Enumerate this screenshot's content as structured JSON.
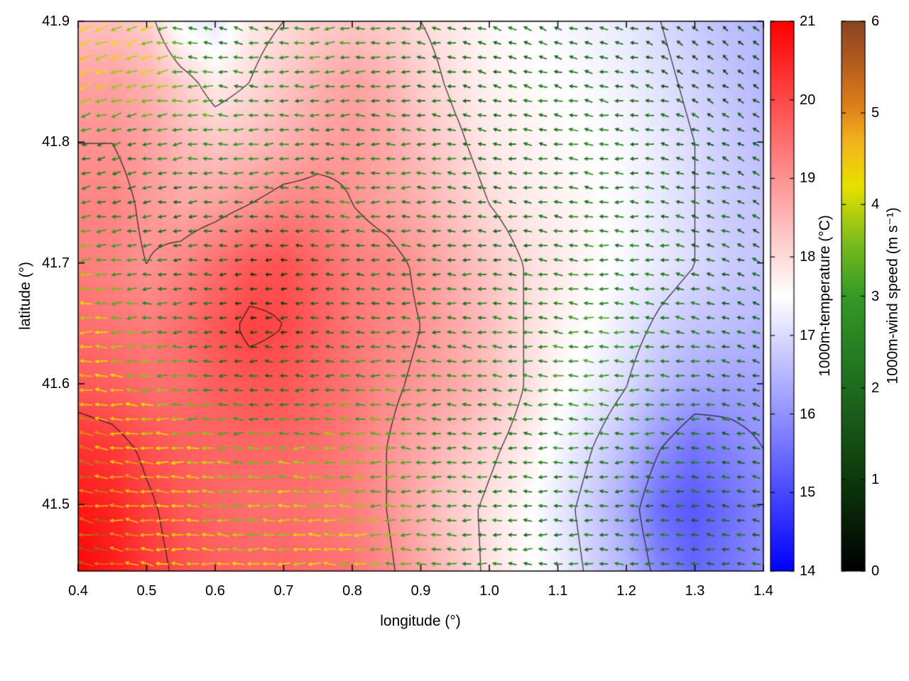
{
  "figure": {
    "xlabel": "longitude (°)",
    "ylabel": "latitude (°)",
    "x_ticks": {
      "values": [
        0.4,
        0.5,
        0.6,
        0.7,
        0.8,
        0.9,
        1.0,
        1.1,
        1.2,
        1.3,
        1.4
      ],
      "labels": [
        "0.4",
        "0.5",
        "0.6",
        "0.7",
        "0.8",
        "0.9",
        "1.0",
        "1.1",
        "1.2",
        "1.3",
        "1.4"
      ]
    },
    "y_ticks": {
      "values": [
        41.5,
        41.6,
        41.7,
        41.8,
        41.9
      ],
      "labels": [
        "41.5",
        "41.6",
        "41.7",
        "41.8",
        "41.9"
      ]
    },
    "background": "#ffffff",
    "border_color": "#000000"
  },
  "colorbars": [
    {
      "id": "temperature",
      "label": "1000m-temperature (°C)",
      "min": 14,
      "max": 21,
      "tick_values": [
        14,
        15,
        16,
        17,
        18,
        19,
        20,
        21
      ],
      "tick_labels": [
        "14",
        "15",
        "16",
        "17",
        "18",
        "19",
        "20",
        "21"
      ],
      "stops": [
        {
          "t": 0.0,
          "c": "#0000ff"
        },
        {
          "t": 0.5,
          "c": "#ffffff"
        },
        {
          "t": 1.0,
          "c": "#ff0000"
        }
      ]
    },
    {
      "id": "wind-speed",
      "label": "1000m-wind speed (m s⁻¹)",
      "min": 0,
      "max": 6,
      "tick_values": [
        0,
        1,
        2,
        3,
        4,
        5,
        6
      ],
      "tick_labels": [
        "0",
        "1",
        "2",
        "3",
        "4",
        "5",
        "6"
      ],
      "stops": [
        {
          "t": 0.0,
          "c": "#000000"
        },
        {
          "t": 0.17,
          "c": "#0d3a0d"
        },
        {
          "t": 0.33,
          "c": "#1e6b1e"
        },
        {
          "t": 0.5,
          "c": "#339a26"
        },
        {
          "t": 0.6,
          "c": "#7cbc1c"
        },
        {
          "t": 0.7,
          "c": "#e8e000"
        },
        {
          "t": 0.78,
          "c": "#f2b41c"
        },
        {
          "t": 0.85,
          "c": "#dd7d18"
        },
        {
          "t": 0.93,
          "c": "#b05a20"
        },
        {
          "t": 1.0,
          "c": "#8a4520"
        }
      ]
    }
  ],
  "chart_data": {
    "type": "heatmap",
    "overlays": [
      "quiver",
      "contour"
    ],
    "title": "",
    "xlabel": "longitude (°)",
    "ylabel": "latitude (°)",
    "xlim": [
      0.4,
      1.4
    ],
    "ylim": [
      41.445,
      41.9
    ],
    "contour_levels": [
      16,
      17,
      18,
      19,
      20
    ],
    "lon": [
      0.4,
      0.45,
      0.5,
      0.55,
      0.6,
      0.65,
      0.7,
      0.75,
      0.8,
      0.85,
      0.9,
      0.95,
      1.0,
      1.05,
      1.1,
      1.15,
      1.2,
      1.25,
      1.3,
      1.35,
      1.4
    ],
    "lat": [
      41.9,
      41.85,
      41.8,
      41.75,
      41.7,
      41.65,
      41.6,
      41.55,
      41.5,
      41.445
    ],
    "temperature_c": [
      [
        18.4,
        18.4,
        18.2,
        17.4,
        17.2,
        17.8,
        18.0,
        18.2,
        18.3,
        18.2,
        18.0,
        17.8,
        17.6,
        17.5,
        17.4,
        17.3,
        17.2,
        17.0,
        16.8,
        16.6,
        16.5
      ],
      [
        18.8,
        18.8,
        18.6,
        18.2,
        17.8,
        18.0,
        18.3,
        18.6,
        18.8,
        18.6,
        18.2,
        17.9,
        17.7,
        17.6,
        17.5,
        17.4,
        17.3,
        17.1,
        16.9,
        16.7,
        16.5
      ],
      [
        19.0,
        19.0,
        18.8,
        18.5,
        18.3,
        18.4,
        18.6,
        18.8,
        18.9,
        18.7,
        18.4,
        18.1,
        17.8,
        17.7,
        17.6,
        17.5,
        17.4,
        17.2,
        17.0,
        16.8,
        16.6
      ],
      [
        19.2,
        19.2,
        18.9,
        18.7,
        18.8,
        19.0,
        19.2,
        19.2,
        19.0,
        18.8,
        18.6,
        18.3,
        18.0,
        17.8,
        17.7,
        17.6,
        17.4,
        17.2,
        17.0,
        16.8,
        16.7
      ],
      [
        19.3,
        19.2,
        19.0,
        19.2,
        19.5,
        19.8,
        19.9,
        19.6,
        19.3,
        19.2,
        18.9,
        18.6,
        18.3,
        18.0,
        17.8,
        17.6,
        17.4,
        17.2,
        17.0,
        16.8,
        16.7
      ],
      [
        19.5,
        19.4,
        19.3,
        19.5,
        19.8,
        20.1,
        20.0,
        19.7,
        19.4,
        19.2,
        19.0,
        18.7,
        18.4,
        18.0,
        17.7,
        17.5,
        17.2,
        16.9,
        16.7,
        16.6,
        16.5
      ],
      [
        19.8,
        19.7,
        19.5,
        19.5,
        19.7,
        19.8,
        19.8,
        19.6,
        19.4,
        19.1,
        18.9,
        18.7,
        18.4,
        18.0,
        17.6,
        17.3,
        17.0,
        16.6,
        16.3,
        16.2,
        16.2
      ],
      [
        20.3,
        20.2,
        19.9,
        19.7,
        19.6,
        19.6,
        19.6,
        19.5,
        19.3,
        19.0,
        18.7,
        18.4,
        18.1,
        17.8,
        17.4,
        17.0,
        16.6,
        16.0,
        15.6,
        15.8,
        16.0
      ],
      [
        20.7,
        20.5,
        20.1,
        19.8,
        19.6,
        19.5,
        19.5,
        19.4,
        19.3,
        19.0,
        18.6,
        18.2,
        17.9,
        17.6,
        17.2,
        16.8,
        16.3,
        15.5,
        15.2,
        15.5,
        15.8
      ],
      [
        20.9,
        20.6,
        20.2,
        19.9,
        19.7,
        19.6,
        19.6,
        19.5,
        19.4,
        19.1,
        18.7,
        18.3,
        17.9,
        17.6,
        17.3,
        16.9,
        16.5,
        15.8,
        15.4,
        15.6,
        15.9
      ]
    ],
    "wind_speed_ms": [
      [
        4.2,
        4.0,
        3.8,
        2.5,
        2.2,
        2.5,
        2.8,
        3.2,
        3.0,
        2.8,
        2.5,
        2.2,
        2.0,
        2.0,
        2.0,
        2.0,
        1.8,
        1.6,
        1.4,
        1.2,
        1.2
      ],
      [
        4.3,
        4.2,
        4.0,
        3.5,
        2.8,
        2.5,
        2.5,
        2.8,
        2.6,
        2.4,
        2.2,
        2.1,
        2.0,
        2.0,
        2.1,
        2.1,
        2.0,
        1.8,
        1.6,
        1.4,
        1.3
      ],
      [
        2.2,
        2.2,
        2.4,
        2.8,
        3.2,
        3.0,
        2.6,
        2.4,
        2.4,
        2.6,
        2.4,
        2.2,
        2.1,
        2.0,
        2.2,
        2.3,
        2.2,
        2.0,
        1.8,
        1.6,
        1.5
      ],
      [
        3.0,
        2.5,
        2.2,
        2.0,
        2.2,
        2.4,
        2.4,
        2.6,
        2.8,
        2.6,
        2.4,
        2.2,
        2.0,
        2.0,
        2.2,
        2.4,
        2.2,
        2.0,
        1.9,
        1.8,
        1.7
      ],
      [
        3.8,
        3.2,
        2.6,
        2.2,
        1.8,
        1.2,
        1.0,
        1.6,
        2.0,
        2.2,
        2.2,
        2.2,
        2.2,
        2.2,
        2.4,
        2.6,
        2.4,
        2.2,
        2.0,
        1.8,
        1.7
      ],
      [
        4.2,
        3.8,
        3.0,
        2.4,
        1.8,
        1.0,
        1.2,
        1.8,
        2.2,
        2.4,
        2.4,
        2.4,
        2.4,
        2.6,
        2.8,
        3.0,
        2.8,
        2.4,
        2.2,
        2.0,
        1.8
      ],
      [
        4.6,
        4.2,
        3.8,
        3.4,
        2.8,
        2.2,
        2.2,
        2.6,
        3.0,
        3.2,
        2.8,
        2.6,
        2.4,
        2.6,
        2.8,
        3.0,
        2.8,
        2.4,
        2.2,
        2.0,
        1.8
      ],
      [
        5.0,
        4.8,
        4.4,
        4.0,
        3.6,
        3.4,
        3.6,
        3.8,
        3.6,
        3.2,
        2.8,
        2.6,
        2.4,
        2.4,
        2.6,
        2.6,
        2.4,
        2.2,
        2.0,
        1.9,
        1.8
      ],
      [
        5.4,
        5.0,
        4.6,
        4.2,
        4.0,
        3.8,
        4.0,
        4.0,
        3.8,
        3.4,
        3.0,
        2.6,
        2.4,
        2.2,
        2.2,
        2.2,
        2.2,
        2.0,
        1.9,
        1.8,
        1.8
      ],
      [
        5.6,
        5.2,
        4.8,
        4.4,
        4.2,
        4.0,
        4.2,
        4.2,
        4.0,
        3.6,
        3.2,
        2.8,
        2.5,
        2.3,
        2.2,
        2.2,
        2.2,
        2.1,
        2.0,
        2.0,
        2.0
      ]
    ],
    "wind_dir_deg": [
      [
        200,
        200,
        195,
        170,
        160,
        170,
        180,
        185,
        185,
        180,
        175,
        170,
        165,
        160,
        160,
        165,
        170,
        150,
        140,
        135,
        135
      ],
      [
        205,
        200,
        195,
        185,
        175,
        175,
        180,
        185,
        185,
        180,
        175,
        170,
        165,
        165,
        165,
        170,
        170,
        160,
        150,
        145,
        140
      ],
      [
        195,
        195,
        190,
        185,
        180,
        180,
        180,
        180,
        180,
        180,
        178,
        175,
        172,
        170,
        170,
        172,
        175,
        170,
        160,
        155,
        150
      ],
      [
        190,
        190,
        188,
        185,
        182,
        180,
        180,
        180,
        180,
        180,
        178,
        176,
        174,
        172,
        172,
        174,
        176,
        172,
        165,
        160,
        155
      ],
      [
        185,
        185,
        185,
        183,
        182,
        180,
        180,
        180,
        180,
        180,
        178,
        176,
        175,
        174,
        174,
        175,
        176,
        174,
        168,
        164,
        160
      ],
      [
        180,
        182,
        183,
        182,
        181,
        180,
        180,
        180,
        180,
        179,
        178,
        177,
        176,
        175,
        175,
        176,
        177,
        175,
        170,
        166,
        162
      ],
      [
        175,
        178,
        180,
        180,
        180,
        180,
        180,
        180,
        180,
        179,
        178,
        177,
        176,
        176,
        176,
        177,
        178,
        176,
        172,
        168,
        165
      ],
      [
        170,
        174,
        177,
        178,
        179,
        180,
        180,
        180,
        180,
        179,
        178,
        177,
        177,
        177,
        177,
        178,
        179,
        177,
        174,
        170,
        168
      ],
      [
        168,
        172,
        175,
        177,
        178,
        179,
        180,
        180,
        180,
        179,
        178,
        178,
        178,
        178,
        178,
        179,
        180,
        178,
        175,
        172,
        170
      ],
      [
        165,
        170,
        174,
        176,
        178,
        179,
        180,
        180,
        180,
        179,
        179,
        178,
        178,
        178,
        179,
        180,
        180,
        179,
        176,
        174,
        172
      ]
    ]
  }
}
